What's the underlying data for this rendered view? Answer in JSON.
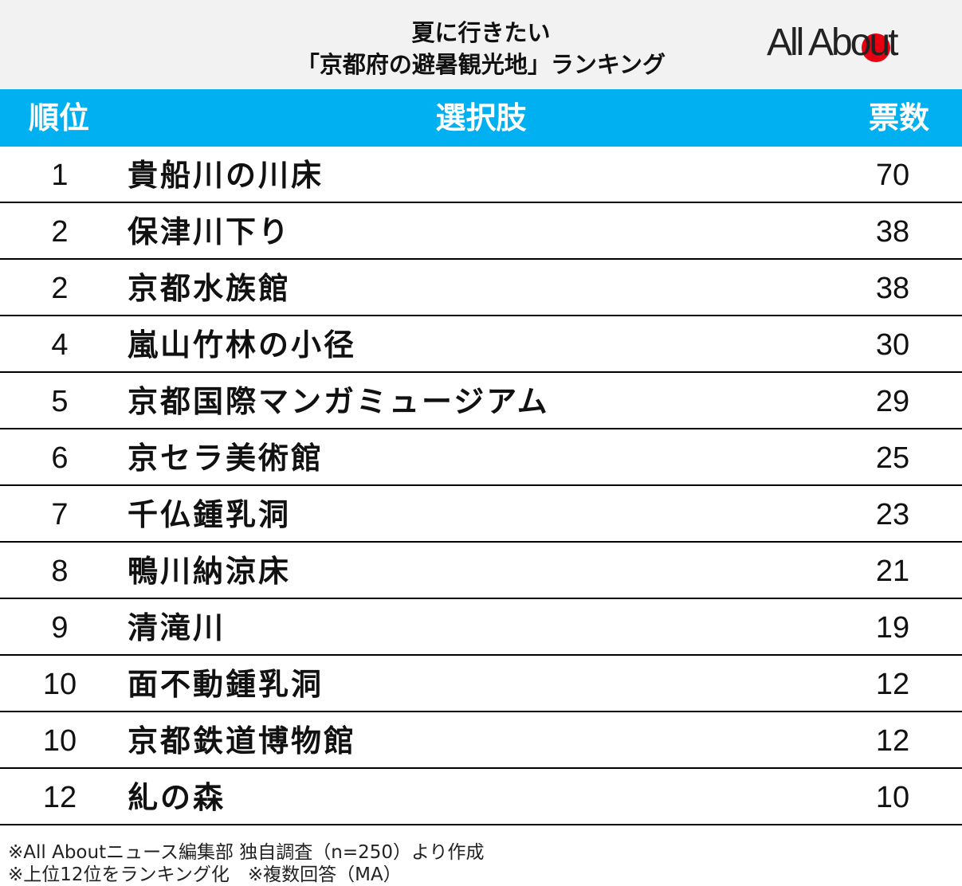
{
  "header": {
    "title_lines": [
      "夏に行きたい",
      "「京都府の避暑観光地」ランキング"
    ],
    "logo": "All About"
  },
  "table": {
    "columns": [
      "順位",
      "選択肢",
      "票数"
    ],
    "rows": [
      [
        1,
        "貴船川の川床",
        70
      ],
      [
        2,
        "保津川下り",
        38
      ],
      [
        2,
        "京都水族館",
        38
      ],
      [
        4,
        "嵐山竹林の小径",
        30
      ],
      [
        5,
        "京都国際マンガミュージアム",
        29
      ],
      [
        6,
        "京セラ美術館",
        25
      ],
      [
        7,
        "千仏鍾乳洞",
        23
      ],
      [
        8,
        "鴨川納涼床",
        21
      ],
      [
        9,
        "清滝川",
        19
      ],
      [
        10,
        "面不動鍾乳洞",
        12
      ],
      [
        10,
        "京都鉄道博物館",
        12
      ],
      [
        12,
        "糺の森",
        10
      ]
    ]
  },
  "notes": [
    "※All Aboutニュース編集部 独自調査（n=250）より作成",
    "※上位12位をランキング化　※複数回答（MA）"
  ]
}
